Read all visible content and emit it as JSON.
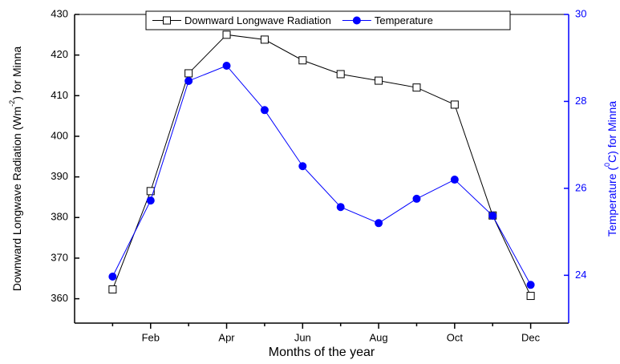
{
  "chart_data": {
    "type": "line",
    "x_label": "Months of the year",
    "y_label": [
      "Downward Longwave Radiation (Wm",
      "-2",
      ") for Minna"
    ],
    "y2_label": [
      "Temperature (",
      "0",
      "C) for Minna"
    ],
    "categories": [
      null,
      "Feb",
      null,
      "Apr",
      null,
      "Jun",
      null,
      "Aug",
      null,
      "Oct",
      null,
      "Dec"
    ],
    "series": [
      {
        "name": "Downward Longwave Radiation",
        "color": "#000000",
        "marker": "square",
        "values": [
          362.3,
          386.5,
          415.5,
          425,
          423.8,
          418.7,
          415.3,
          413.7,
          412,
          407.8,
          380.5,
          360.7
        ]
      },
      {
        "name": "Temperature",
        "color": "#0000ff",
        "marker": "circle",
        "axis": "y2",
        "values": [
          23.97,
          25.72,
          28.47,
          28.82,
          27.8,
          26.51,
          25.57,
          25.2,
          25.76,
          26.2,
          25.37,
          23.78
        ]
      }
    ],
    "ylim": [
      354,
      430
    ],
    "yticks": [
      360,
      370,
      380,
      390,
      400,
      410,
      420,
      430
    ],
    "y2lim": [
      22.9,
      30
    ],
    "y2ticks": [
      24,
      26,
      28,
      30
    ],
    "legend": "top"
  }
}
